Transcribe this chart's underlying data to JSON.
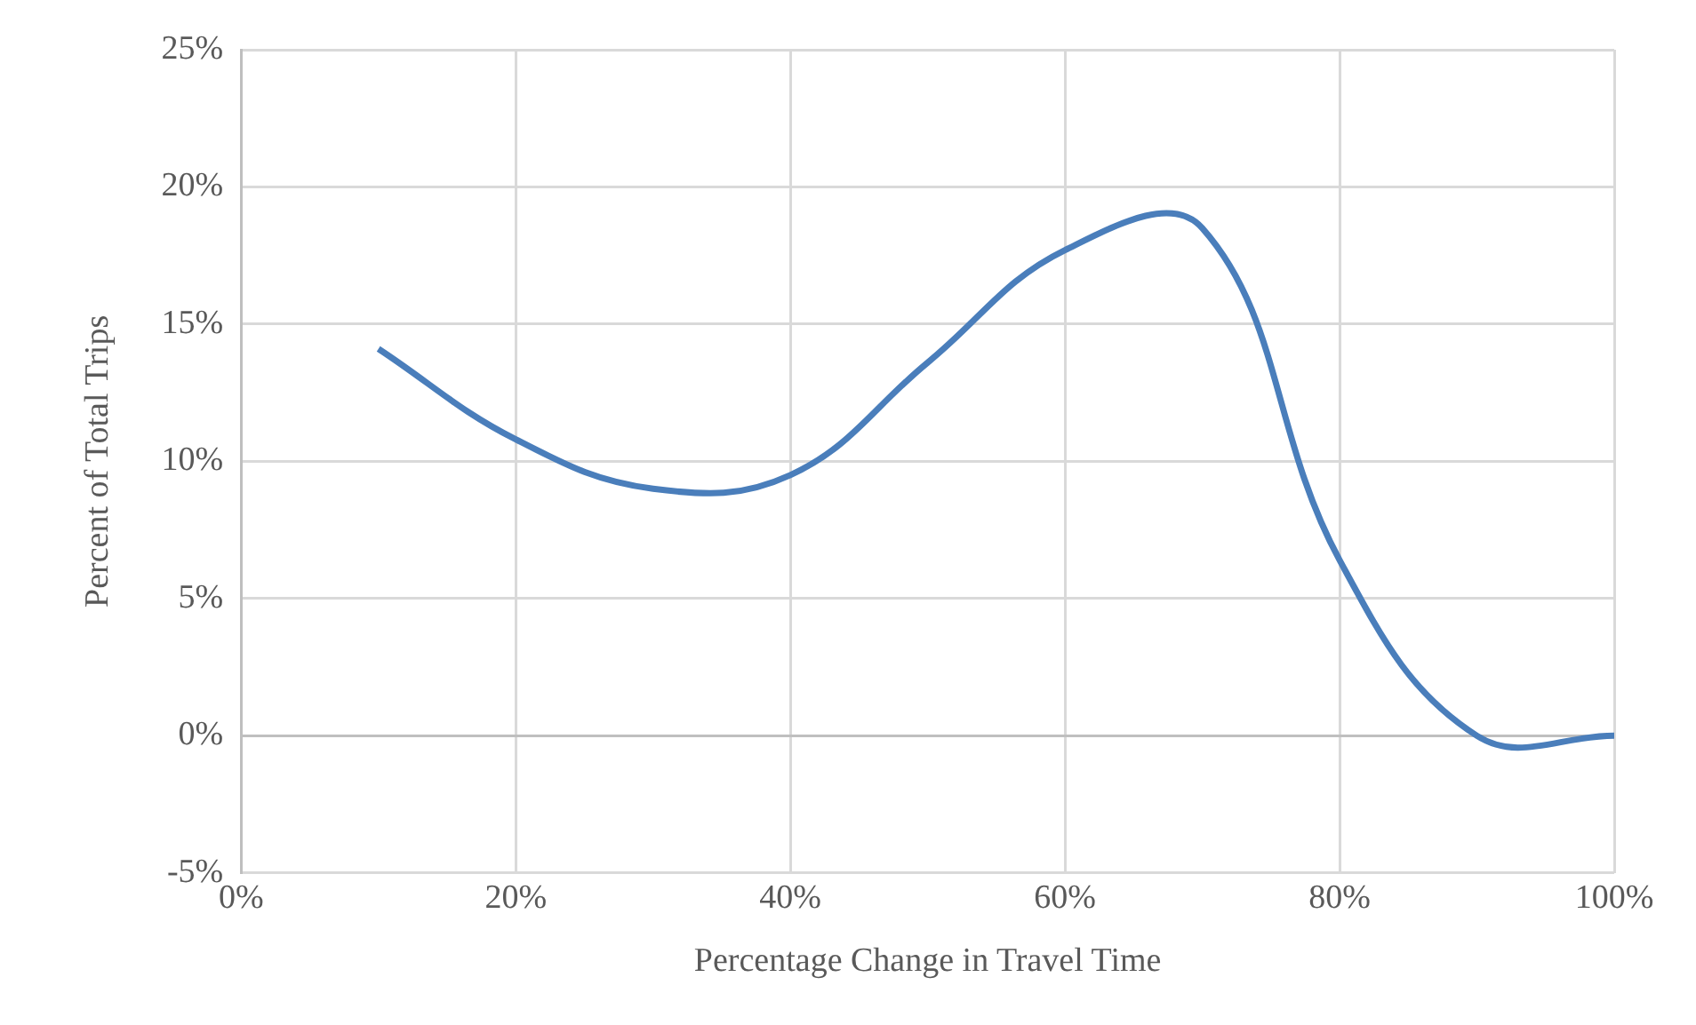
{
  "chart_data": {
    "type": "line",
    "xlabel": "Percentage Change in Travel Time",
    "ylabel": "Percent of Total Trips",
    "x": [
      10,
      20,
      30,
      40,
      50,
      60,
      70,
      80,
      90,
      100
    ],
    "series": [
      {
        "color": "#4a7ebb",
        "values": [
          14.1,
          10.8,
          9.0,
          9.5,
          13.6,
          17.7,
          18.5,
          6.4,
          0.0,
          0.0
        ]
      }
    ],
    "xlim": [
      0,
      100
    ],
    "xticks": [
      {
        "value": 0,
        "label": "0%"
      },
      {
        "value": 20,
        "label": "20%"
      },
      {
        "value": 40,
        "label": "40%"
      },
      {
        "value": 60,
        "label": "60%"
      },
      {
        "value": 80,
        "label": "80%"
      },
      {
        "value": 100,
        "label": "100%"
      }
    ],
    "ylim": [
      -5,
      25
    ],
    "yticks": [
      {
        "value": -5,
        "label": "-5%"
      },
      {
        "value": 0,
        "label": "0%"
      },
      {
        "value": 5,
        "label": "5%"
      },
      {
        "value": 10,
        "label": "10%"
      },
      {
        "value": 15,
        "label": "15%"
      },
      {
        "value": 20,
        "label": "20%"
      },
      {
        "value": 25,
        "label": "25%"
      }
    ],
    "grid": true,
    "legend": false,
    "marker": "none",
    "line_style": "solid"
  }
}
